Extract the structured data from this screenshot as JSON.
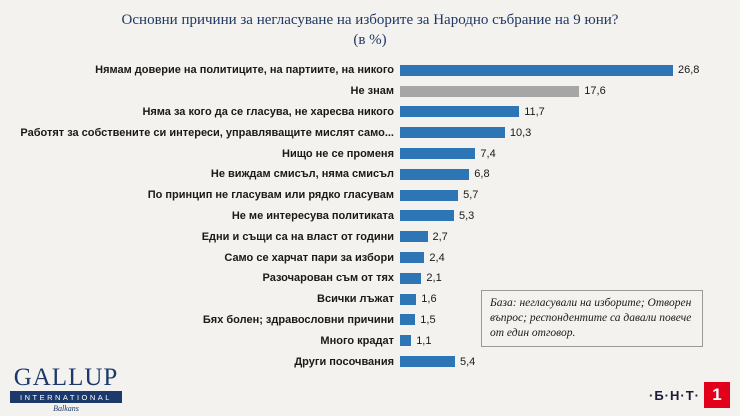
{
  "title": {
    "line1": "Основни причини за негласуване на изборите за Народно събрание на 9 юни?",
    "line2": "(в %)"
  },
  "chart_data": {
    "type": "bar",
    "orientation": "horizontal",
    "title": "Основни причини за негласуване на изборите за Народно събрание на 9 юни? (в %)",
    "categories": [
      "Нямам доверие на политиците, на партиите, на никого",
      "Не знам",
      "Няма за кого да се гласува, не харесва никого",
      "Работят за собствените си интереси, управляващите мислят само...",
      "Нищо не се променя",
      "Не виждам смисъл, няма смисъл",
      "По принцип не гласувам или рядко гласувам",
      "Не ме интересува политиката",
      "Едни и същи са на власт от години",
      "Само се харчат пари за избори",
      "Разочарован съм от тях",
      "Всички лъжат",
      "Бях болен; здравословни причини",
      "Много крадат",
      "Други посочвания"
    ],
    "values": [
      26.8,
      17.6,
      11.7,
      10.3,
      7.4,
      6.8,
      5.7,
      5.3,
      2.7,
      2.4,
      2.1,
      1.6,
      1.5,
      1.1,
      5.4
    ],
    "value_labels": [
      "26,8",
      "17,6",
      "11,7",
      "10,3",
      "7,4",
      "6,8",
      "5,7",
      "5,3",
      "2,7",
      "2,4",
      "2,1",
      "1,6",
      "1,5",
      "1,1",
      "5,4"
    ],
    "highlight_index": 1,
    "colors": {
      "bar": "#2e75b6",
      "highlight": "#a6a6a6"
    },
    "xlim": [
      0,
      28
    ],
    "grid": false,
    "legend": "none"
  },
  "note": {
    "text": "База: негласували на изборите; Отворен въпрос; респондентите са давали повече от един отговор."
  },
  "footer": {
    "gallup": {
      "name": "GALLUP",
      "sub": "INTERNATIONAL",
      "region": "Balkans"
    },
    "bnt": {
      "text": "·Б·Н·Т·",
      "channel": "1"
    }
  }
}
